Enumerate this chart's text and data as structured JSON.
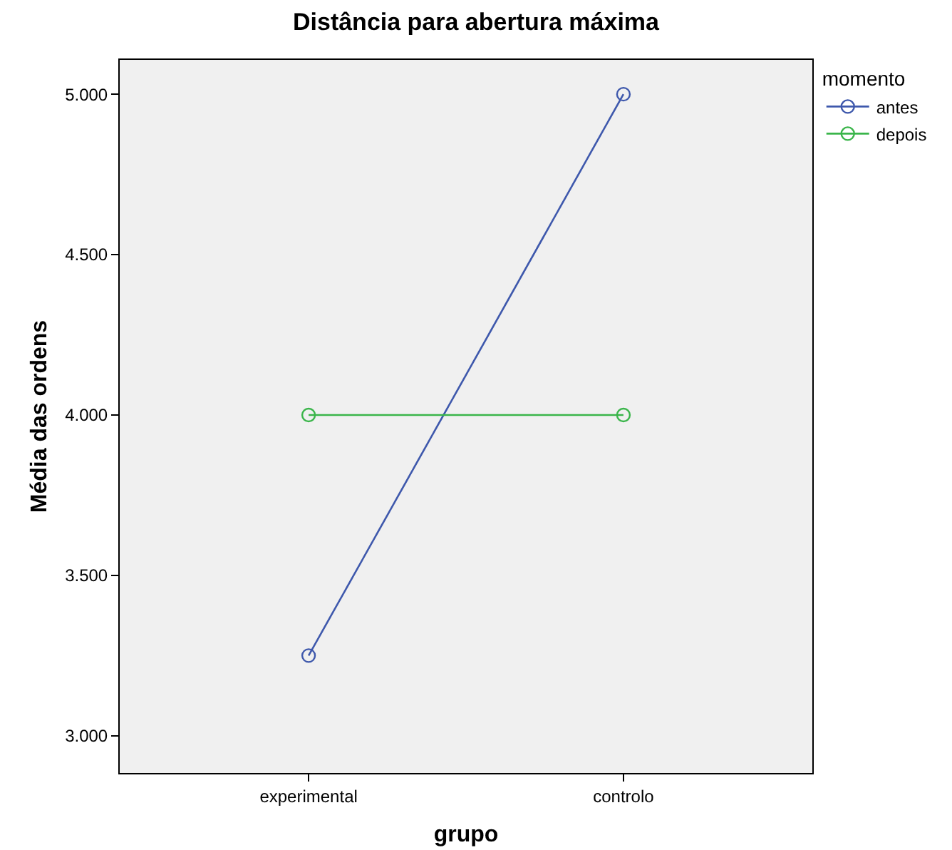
{
  "chart_data": {
    "type": "line",
    "title": "Distância para abertura máxima",
    "xlabel": "grupo",
    "ylabel": "Média das ordens",
    "legend_title": "momento",
    "categories": [
      "experimental",
      "controlo"
    ],
    "series": [
      {
        "name": "antes",
        "color": "#3e58ac",
        "values": [
          3.25,
          5.0
        ]
      },
      {
        "name": "depois",
        "color": "#3ab54a",
        "values": [
          4.0,
          4.0
        ]
      }
    ],
    "ylim": [
      2.884,
      5.107
    ],
    "yticks": [
      {
        "value": 3,
        "label": "3.000"
      },
      {
        "value": 3.5,
        "label": "3.500"
      },
      {
        "value": 4,
        "label": "4.000"
      },
      {
        "value": 4.5,
        "label": "4.500"
      },
      {
        "value": 5,
        "label": "5.000"
      }
    ],
    "grid": false,
    "legend": "top right",
    "marker": "circle",
    "line_style": "solid"
  }
}
